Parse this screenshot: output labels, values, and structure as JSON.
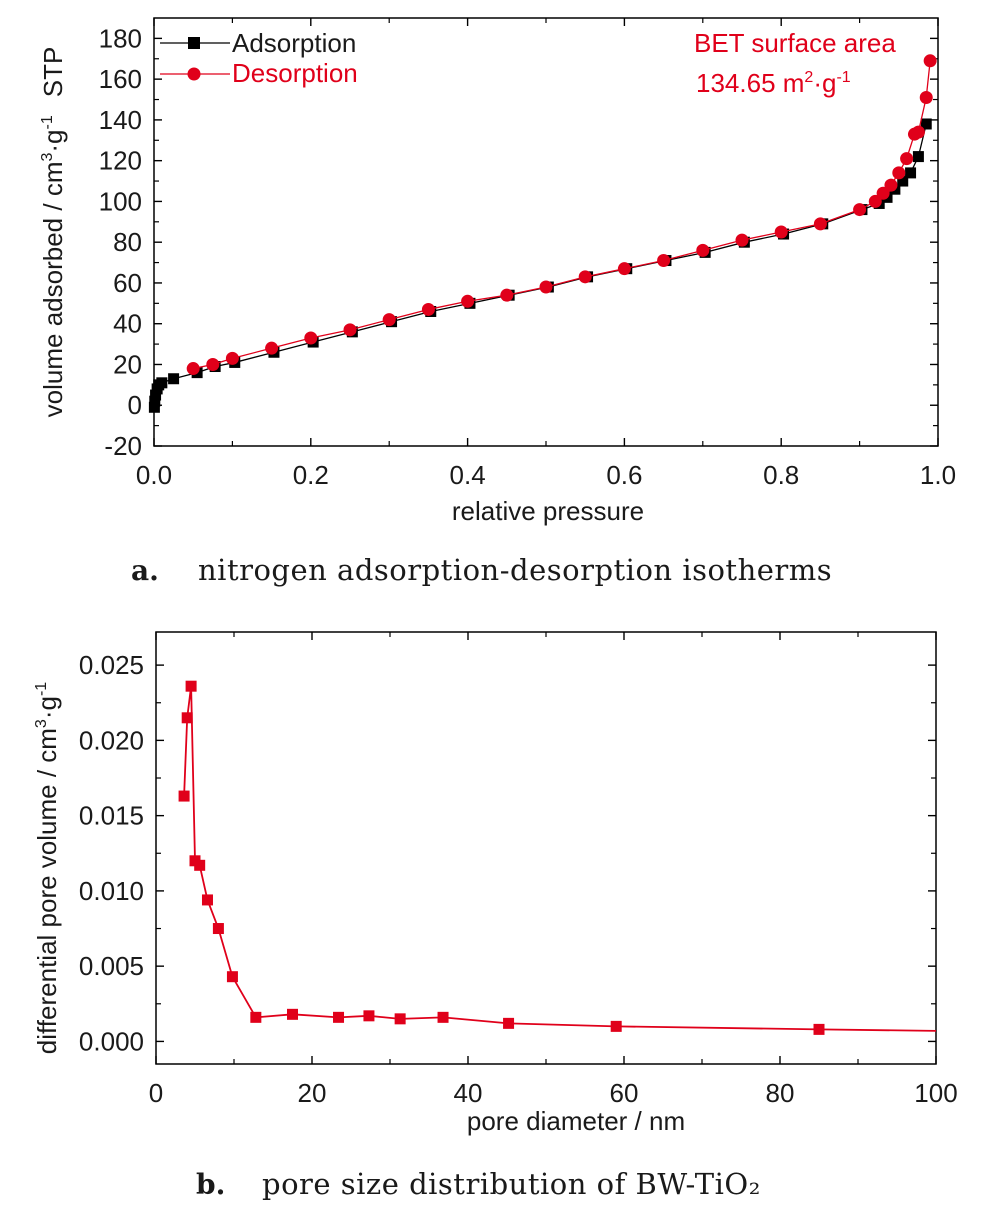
{
  "chart_data": [
    {
      "type": "line",
      "xlabel": "relative pressure",
      "ylabel": "volume adsorbed / cm³·g⁻¹  STP",
      "xlim": [
        0.0,
        1.0
      ],
      "ylim": [
        -20,
        190
      ],
      "xticks": [
        "0.0",
        "0.2",
        "0.4",
        "0.6",
        "0.8",
        "1.0"
      ],
      "yticks": [
        "-20",
        "0",
        "20",
        "40",
        "60",
        "80",
        "100",
        "120",
        "140",
        "160",
        "180"
      ],
      "grid": false,
      "legend_position": "top-left",
      "annotation": {
        "line1": "BET surface area",
        "line2": "134.65 m²·g⁻¹"
      },
      "series": [
        {
          "name": "Adsorption",
          "color": "#000000",
          "marker": "square",
          "x": [
            0.0005,
            0.001,
            0.002,
            0.004,
            0.006,
            0.01,
            0.025,
            0.055,
            0.078,
            0.103,
            0.153,
            0.203,
            0.253,
            0.303,
            0.353,
            0.403,
            0.453,
            0.503,
            0.553,
            0.603,
            0.653,
            0.703,
            0.753,
            0.803,
            0.853,
            0.903,
            0.925,
            0.935,
            0.945,
            0.955,
            0.965,
            0.975,
            0.985
          ],
          "y": [
            -1,
            2,
            5,
            8,
            10,
            11,
            13,
            16,
            19,
            21,
            26,
            31,
            36,
            41,
            46,
            50,
            54,
            58,
            63,
            67,
            71,
            75,
            80,
            84,
            89,
            96,
            99,
            102,
            106,
            110,
            114,
            122,
            138
          ]
        },
        {
          "name": "Desorption",
          "color": "#e0001a",
          "marker": "circle",
          "x": [
            0.05,
            0.075,
            0.1,
            0.15,
            0.2,
            0.25,
            0.3,
            0.35,
            0.4,
            0.45,
            0.5,
            0.55,
            0.6,
            0.65,
            0.7,
            0.75,
            0.8,
            0.85,
            0.9,
            0.92,
            0.93,
            0.94,
            0.95,
            0.96,
            0.97,
            0.975,
            0.985,
            0.99
          ],
          "y": [
            18,
            20,
            23,
            28,
            33,
            37,
            42,
            47,
            51,
            54,
            58,
            63,
            67,
            71,
            76,
            81,
            85,
            89,
            96,
            100,
            104,
            108,
            114,
            121,
            133,
            134,
            151,
            169
          ]
        }
      ]
    },
    {
      "type": "line",
      "xlabel": "pore diameter / nm",
      "ylabel": "differential pore volume / cm³·g⁻¹",
      "xlim": [
        0,
        100
      ],
      "ylim": [
        -0.0015,
        0.0272
      ],
      "xticks": [
        "0",
        "20",
        "40",
        "60",
        "80",
        "100"
      ],
      "yticks": [
        "0.000",
        "0.005",
        "0.010",
        "0.015",
        "0.020",
        "0.025"
      ],
      "grid": false,
      "series": [
        {
          "color": "#e0001a",
          "marker": "square",
          "x": [
            3.6,
            4.0,
            4.5,
            5.0,
            5.6,
            6.6,
            8.0,
            9.8,
            12.8,
            17.5,
            23.4,
            27.3,
            31.3,
            36.8,
            45.2,
            59.0,
            85.0,
            100.0
          ],
          "y": [
            0.0163,
            0.0215,
            0.0236,
            0.012,
            0.0117,
            0.0094,
            0.0075,
            0.0043,
            0.0016,
            0.0018,
            0.0016,
            0.0017,
            0.0015,
            0.0016,
            0.0012,
            0.001,
            0.0008,
            0.0007
          ],
          "marker_count": 17
        }
      ]
    }
  ],
  "captions": {
    "a": {
      "letter": "a.",
      "text": "nitrogen adsorption-desorption isotherms"
    },
    "b": {
      "letter": "b.",
      "text": "pore size distribution of BW-TiO₂"
    }
  }
}
